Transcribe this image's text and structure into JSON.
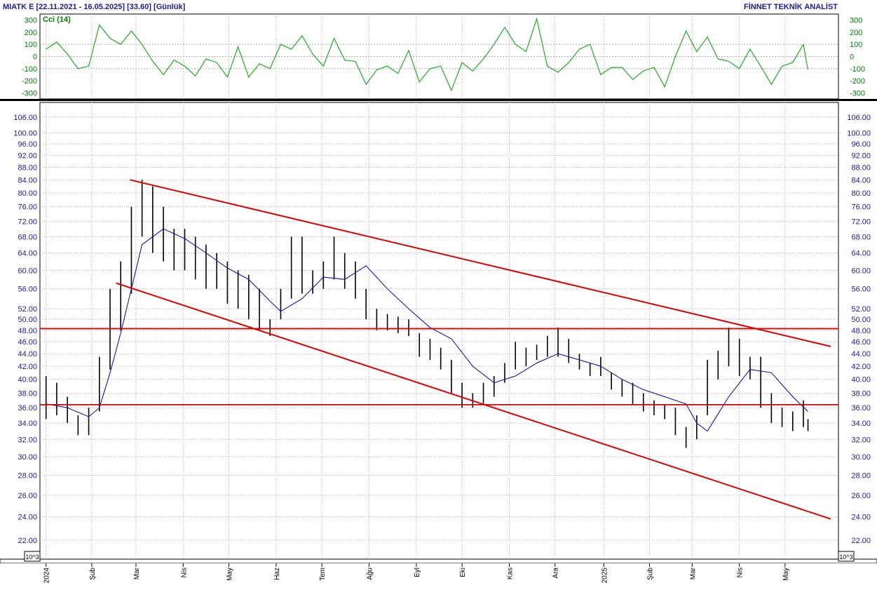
{
  "header": {
    "left": "MIATK E  [22.11.2021 - 16.05.2025]  [33.60]  [Günlük]",
    "right": "FİNNET TEKNİK ANALİST"
  },
  "colors": {
    "price_bars": "#000000",
    "moving_average": "#0000aa",
    "cci": "#22aa22",
    "trendlines": "#dd0000",
    "axis_text": "#1a1a9a",
    "grid": "#aaaaaa"
  },
  "units_label": "10^3",
  "chart_data": [
    {
      "type": "line",
      "title": "Cci (14)",
      "ylim": [
        -350,
        350
      ],
      "yticks": [
        300,
        200,
        100,
        0,
        -100,
        -200,
        -300
      ],
      "tick_labels": [
        "300",
        "200",
        "100",
        "0",
        "-100",
        "-200",
        "-300"
      ],
      "reference_lines": [
        100,
        0,
        -100
      ],
      "series": [
        {
          "name": "Cci (14)",
          "x": [
            "2024-01-02",
            "2024-01-09",
            "2024-01-16",
            "2024-01-23",
            "2024-01-30",
            "2024-02-06",
            "2024-02-13",
            "2024-02-20",
            "2024-02-27",
            "2024-03-05",
            "2024-03-12",
            "2024-03-19",
            "2024-03-26",
            "2024-04-02",
            "2024-04-09",
            "2024-04-16",
            "2024-04-23",
            "2024-04-30",
            "2024-05-07",
            "2024-05-14",
            "2024-05-21",
            "2024-05-28",
            "2024-06-04",
            "2024-06-11",
            "2024-06-18",
            "2024-06-25",
            "2024-07-02",
            "2024-07-09",
            "2024-07-16",
            "2024-07-23",
            "2024-07-30",
            "2024-08-06",
            "2024-08-13",
            "2024-08-20",
            "2024-08-27",
            "2024-09-03",
            "2024-09-10",
            "2024-09-17",
            "2024-09-24",
            "2024-10-01",
            "2024-10-08",
            "2024-10-15",
            "2024-10-22",
            "2024-10-29",
            "2024-11-05",
            "2024-11-12",
            "2024-11-19",
            "2024-11-26",
            "2024-12-03",
            "2024-12-10",
            "2024-12-17",
            "2024-12-24",
            "2024-12-31",
            "2025-01-07",
            "2025-01-14",
            "2025-01-21",
            "2025-01-28",
            "2025-02-04",
            "2025-02-11",
            "2025-02-18",
            "2025-02-25",
            "2025-03-04",
            "2025-03-11",
            "2025-03-18",
            "2025-03-25",
            "2025-04-01",
            "2025-04-08",
            "2025-04-15",
            "2025-04-22",
            "2025-04-29",
            "2025-05-06",
            "2025-05-13",
            "2025-05-16"
          ],
          "values": [
            60,
            120,
            20,
            -100,
            -80,
            260,
            150,
            100,
            210,
            100,
            -40,
            -150,
            -30,
            -80,
            -160,
            -20,
            -50,
            -170,
            80,
            -170,
            -60,
            -100,
            100,
            60,
            170,
            20,
            -80,
            150,
            -30,
            -40,
            -230,
            -110,
            -80,
            -140,
            50,
            -210,
            -100,
            -80,
            -280,
            -50,
            -120,
            -20,
            100,
            240,
            100,
            40,
            310,
            -80,
            -130,
            -50,
            60,
            100,
            -150,
            -90,
            -90,
            -190,
            -120,
            -90,
            -250,
            0,
            210,
            40,
            160,
            -20,
            -40,
            -100,
            60,
            -80,
            -230,
            -80,
            -50,
            100,
            -110
          ]
        }
      ]
    },
    {
      "type": "line",
      "title": "",
      "scale": "log",
      "ylim": [
        20.5,
        112
      ],
      "yticks": [
        22,
        24,
        26,
        28,
        30,
        32,
        34,
        36,
        38,
        40,
        42,
        44,
        46,
        48,
        50,
        52,
        56,
        60,
        64,
        68,
        72,
        76,
        80,
        84,
        88,
        92,
        96,
        100,
        106
      ],
      "tick_labels": [
        "22.00",
        "24.00",
        "26.00",
        "28.00",
        "30.00",
        "32.00",
        "34.00",
        "36.00",
        "38.00",
        "40.00",
        "42.00",
        "44.00",
        "46.00",
        "48.00",
        "50.00",
        "52.00",
        "56.00",
        "60.00",
        "64.00",
        "68.00",
        "72.00",
        "76.00",
        "80.00",
        "84.00",
        "88.00",
        "92.00",
        "96.00",
        "100.00",
        "106.00"
      ],
      "xlim": [
        "2023-12-29",
        "2025-06-05"
      ],
      "x_ticks": [
        {
          "label": "2024",
          "date": "2024-01-02"
        },
        {
          "label": "Şub",
          "date": "2024-02-01"
        },
        {
          "label": "Mar",
          "date": "2024-03-01"
        },
        {
          "label": "Nis",
          "date": "2024-04-01"
        },
        {
          "label": "May",
          "date": "2024-05-01"
        },
        {
          "label": "Haz",
          "date": "2024-06-01"
        },
        {
          "label": "Tem",
          "date": "2024-07-01"
        },
        {
          "label": "Ağu",
          "date": "2024-08-01"
        },
        {
          "label": "Eyl",
          "date": "2024-09-01"
        },
        {
          "label": "Eki",
          "date": "2024-10-01"
        },
        {
          "label": "Kas",
          "date": "2024-11-01"
        },
        {
          "label": "Ara",
          "date": "2024-12-01"
        },
        {
          "label": "2025",
          "date": "2025-01-02"
        },
        {
          "label": "Şub",
          "date": "2025-02-01"
        },
        {
          "label": "Mar",
          "date": "2025-03-01"
        },
        {
          "label": "Nis",
          "date": "2025-04-01"
        },
        {
          "label": "May",
          "date": "2025-05-01"
        }
      ],
      "grid": true,
      "series": [
        {
          "name": "Price",
          "style": "bars",
          "x": [
            "2024-01-02",
            "2024-01-09",
            "2024-01-16",
            "2024-01-23",
            "2024-01-30",
            "2024-02-06",
            "2024-02-13",
            "2024-02-20",
            "2024-02-27",
            "2024-03-05",
            "2024-03-12",
            "2024-03-19",
            "2024-03-26",
            "2024-04-02",
            "2024-04-09",
            "2024-04-16",
            "2024-04-23",
            "2024-04-30",
            "2024-05-07",
            "2024-05-14",
            "2024-05-21",
            "2024-05-28",
            "2024-06-04",
            "2024-06-11",
            "2024-06-18",
            "2024-06-25",
            "2024-07-02",
            "2024-07-09",
            "2024-07-16",
            "2024-07-23",
            "2024-07-30",
            "2024-08-06",
            "2024-08-13",
            "2024-08-20",
            "2024-08-27",
            "2024-09-03",
            "2024-09-10",
            "2024-09-17",
            "2024-09-24",
            "2024-10-01",
            "2024-10-08",
            "2024-10-15",
            "2024-10-22",
            "2024-10-29",
            "2024-11-05",
            "2024-11-12",
            "2024-11-19",
            "2024-11-26",
            "2024-12-03",
            "2024-12-10",
            "2024-12-17",
            "2024-12-24",
            "2024-12-31",
            "2025-01-07",
            "2025-01-14",
            "2025-01-21",
            "2025-01-28",
            "2025-02-04",
            "2025-02-11",
            "2025-02-18",
            "2025-02-25",
            "2025-03-04",
            "2025-03-11",
            "2025-03-18",
            "2025-03-25",
            "2025-04-01",
            "2025-04-08",
            "2025-04-15",
            "2025-04-22",
            "2025-04-29",
            "2025-05-06",
            "2025-05-13",
            "2025-05-16"
          ],
          "high": [
            40.5,
            39.5,
            37.5,
            35.0,
            36.0,
            43.5,
            56.0,
            62.0,
            76.0,
            84.0,
            82.0,
            76.0,
            70.0,
            70.0,
            68.0,
            66.0,
            64.0,
            62.0,
            60.0,
            59.0,
            56.0,
            50.0,
            56.0,
            68.0,
            68.0,
            60.0,
            62.0,
            68.0,
            64.0,
            62.0,
            56.0,
            52.0,
            51.0,
            50.5,
            50.0,
            47.5,
            46.5,
            45.0,
            43.0,
            39.5,
            38.0,
            39.5,
            40.5,
            42.5,
            46.0,
            45.0,
            45.5,
            47.0,
            48.5,
            46.5,
            44.0,
            42.5,
            43.5,
            41.0,
            40.0,
            39.5,
            38.0,
            37.0,
            36.5,
            36.0,
            33.5,
            35.0,
            43.0,
            44.5,
            48.5,
            46.5,
            43.5,
            43.5,
            38.0,
            36.0,
            35.5,
            37.0,
            34.5
          ],
          "low": [
            34.5,
            35.0,
            34.0,
            32.5,
            32.5,
            35.5,
            41.5,
            48.0,
            55.0,
            68.0,
            64.0,
            62.0,
            60.0,
            60.0,
            58.0,
            56.0,
            56.0,
            53.0,
            52.0,
            50.0,
            48.0,
            47.0,
            50.0,
            54.0,
            55.0,
            55.0,
            56.0,
            58.0,
            56.0,
            54.0,
            50.0,
            48.0,
            48.0,
            47.5,
            47.0,
            43.5,
            43.0,
            41.5,
            38.0,
            36.0,
            36.0,
            36.5,
            37.5,
            39.5,
            41.5,
            42.0,
            43.0,
            43.5,
            43.5,
            42.5,
            41.5,
            40.5,
            40.5,
            38.5,
            37.5,
            36.5,
            35.5,
            35.0,
            34.5,
            32.5,
            31.0,
            32.0,
            35.0,
            40.0,
            42.0,
            40.5,
            40.0,
            36.0,
            34.0,
            33.5,
            33.0,
            33.5,
            33.0
          ]
        },
        {
          "name": "Moving average",
          "style": "line",
          "x": [
            "2024-01-02",
            "2024-01-16",
            "2024-01-30",
            "2024-02-06",
            "2024-02-13",
            "2024-02-20",
            "2024-02-27",
            "2024-03-05",
            "2024-03-19",
            "2024-04-02",
            "2024-04-16",
            "2024-04-30",
            "2024-05-14",
            "2024-05-28",
            "2024-06-04",
            "2024-06-18",
            "2024-07-02",
            "2024-07-16",
            "2024-07-30",
            "2024-08-13",
            "2024-08-27",
            "2024-09-10",
            "2024-09-24",
            "2024-10-08",
            "2024-10-22",
            "2024-11-05",
            "2024-11-19",
            "2024-12-03",
            "2024-12-17",
            "2024-12-31",
            "2025-01-14",
            "2025-01-28",
            "2025-02-11",
            "2025-02-25",
            "2025-03-04",
            "2025-03-11",
            "2025-03-25",
            "2025-04-08",
            "2025-04-22",
            "2025-05-06",
            "2025-05-16"
          ],
          "values": [
            36.5,
            36.0,
            34.8,
            36.0,
            41.0,
            47.5,
            56.0,
            66.0,
            70.0,
            67.5,
            64.0,
            60.5,
            58.0,
            53.5,
            51.5,
            54.0,
            58.5,
            58.0,
            61.0,
            56.0,
            52.0,
            48.5,
            46.5,
            42.0,
            39.5,
            40.5,
            42.5,
            44.0,
            43.0,
            42.0,
            40.0,
            38.5,
            37.5,
            36.5,
            34.0,
            33.0,
            37.5,
            41.5,
            41.0,
            37.5,
            35.5
          ]
        },
        {
          "name": "Upper channel",
          "style": "trendline",
          "x": [
            "2024-02-26",
            "2025-05-31"
          ],
          "values": [
            84.0,
            45.2
          ]
        },
        {
          "name": "Lower channel",
          "style": "trendline",
          "x": [
            "2024-02-17",
            "2025-05-31"
          ],
          "values": [
            57.2,
            23.8
          ]
        },
        {
          "name": "Resistance",
          "style": "hline",
          "values": [
            48.3
          ]
        },
        {
          "name": "Support",
          "style": "hline",
          "values": [
            36.4
          ]
        }
      ]
    }
  ]
}
